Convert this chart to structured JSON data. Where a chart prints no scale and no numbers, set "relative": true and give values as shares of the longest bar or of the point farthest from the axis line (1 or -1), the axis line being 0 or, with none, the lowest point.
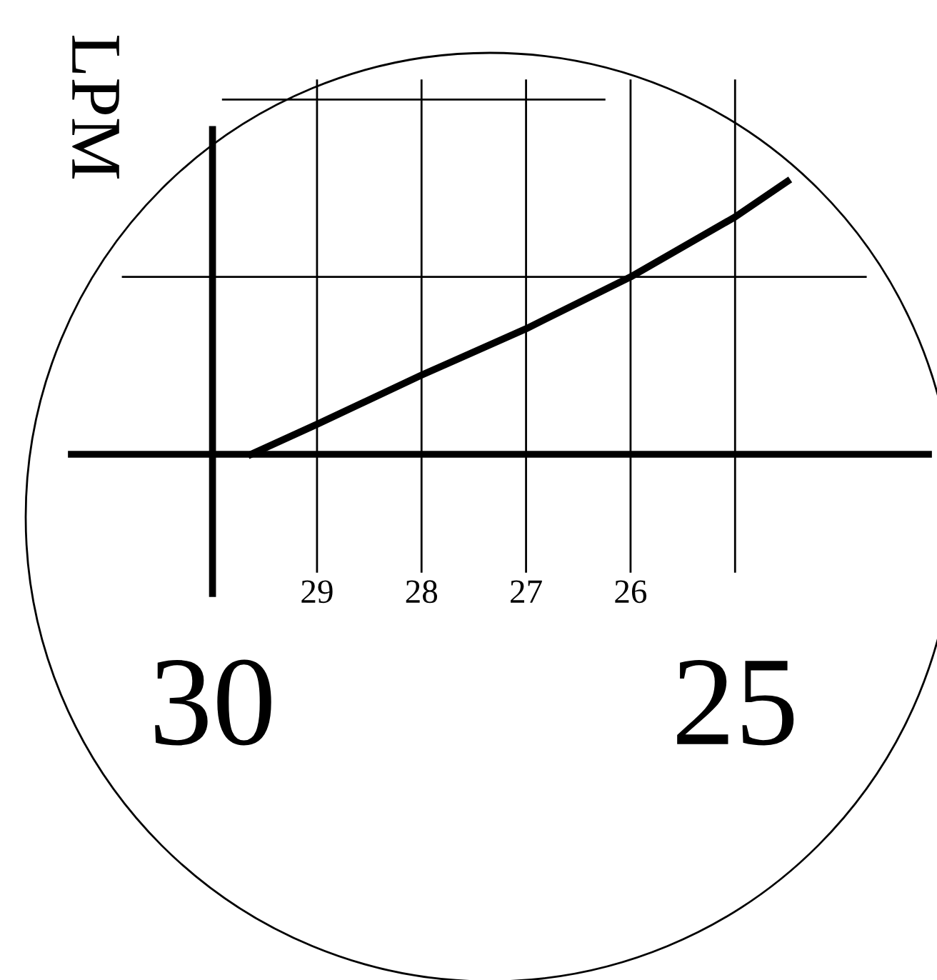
{
  "chart_data": {
    "type": "line",
    "ylabel": "LPM",
    "relative": true,
    "x": [
      29.63,
      29,
      28,
      27,
      26,
      25,
      24.5
    ],
    "series": [
      {
        "color": "#000000",
        "values": [
          0,
          0.11,
          0.29,
          0.46,
          0.65,
          0.87,
          1
        ]
      }
    ],
    "xlim": [
      31.35,
      23.15
    ],
    "xticks": [
      {
        "value": 30,
        "label": null
      },
      29,
      28,
      27,
      26,
      {
        "value": 25,
        "label": null
      }
    ],
    "annotations": [
      "30",
      "25"
    ],
    "grid": "x",
    "marker": "none",
    "line_style": "solid",
    "ref_lines": [
      {
        "axis": "x",
        "value": 30,
        "color": "#000000"
      },
      {
        "axis": "y",
        "value": 0.65,
        "color": "#000000"
      },
      {
        "axis": "y",
        "value": 1.3,
        "color": "#000000"
      }
    ]
  }
}
